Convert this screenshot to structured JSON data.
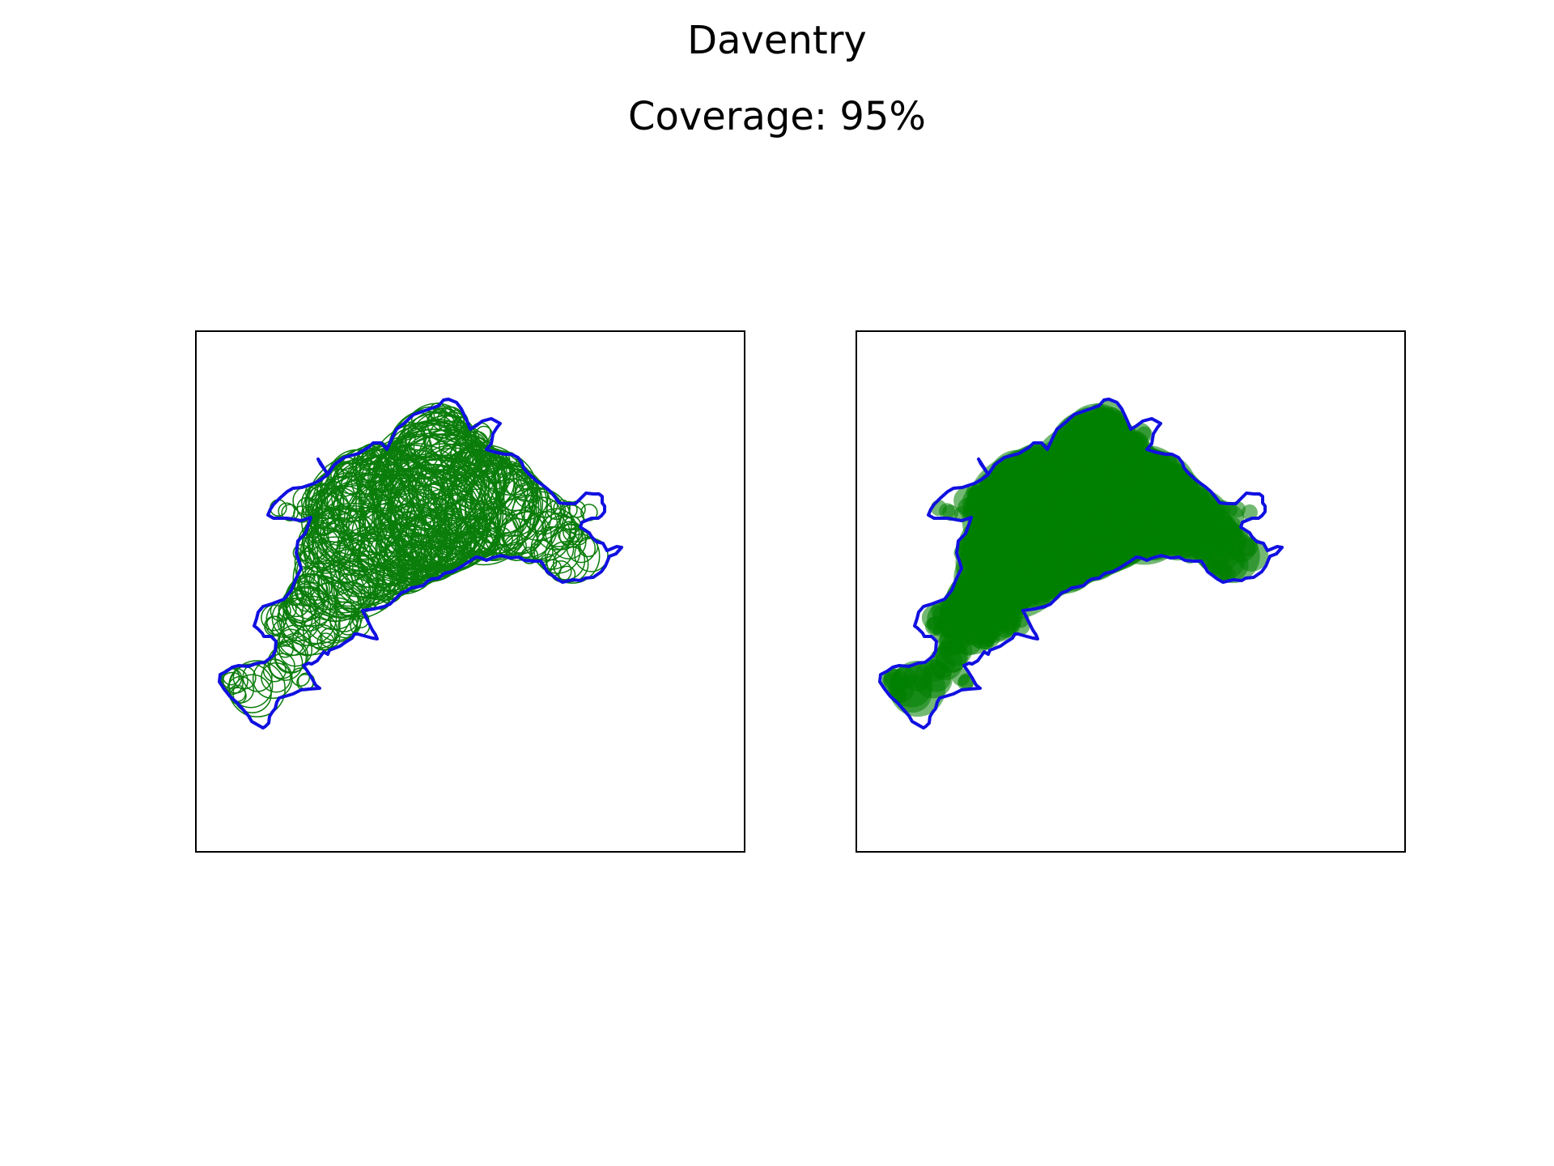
{
  "figure": {
    "title": "Daventry",
    "subtitle": "Coverage: 95%"
  },
  "colors": {
    "boundary": "#1010e0",
    "circles": "#0a7d0a",
    "fill": "#008000"
  },
  "panels": [
    {
      "mode": "outline"
    },
    {
      "mode": "filled"
    }
  ]
}
